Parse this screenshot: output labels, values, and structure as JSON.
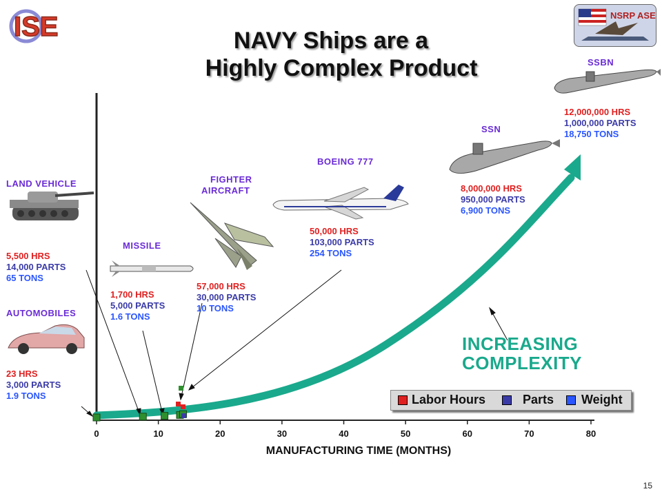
{
  "slide": {
    "title_line1": "NAVY Ships are a",
    "title_line2": "Highly Complex Product",
    "logo_left_text": "ISE",
    "logo_right_text": "NSRP ASE",
    "page_number": "15",
    "increasing_line1": "INCREASING",
    "increasing_line2": "COMPLEXITY"
  },
  "items": [
    {
      "name": "AUTOMOBILES",
      "hrs": "23 HRS",
      "parts": "3,000 PARTS",
      "tons": "1.9 TONS"
    },
    {
      "name": "LAND VEHICLE",
      "hrs": "5,500 HRS",
      "parts": "14,000 PARTS",
      "tons": "65 TONS"
    },
    {
      "name": "MISSILE",
      "hrs": "1,700 HRS",
      "parts": "5,000 PARTS",
      "tons": "1.6 TONS"
    },
    {
      "name_line1": "FIGHTER",
      "name_line2": "AIRCRAFT",
      "hrs": "57,000 HRS",
      "parts": "30,000 PARTS",
      "tons": "10 TONS"
    },
    {
      "name": "BOEING 777",
      "hrs": "50,000 HRS",
      "parts": "103,000 PARTS",
      "tons": "254 TONS"
    },
    {
      "name": "SSN",
      "hrs": "8,000,000 HRS",
      "parts": "950,000 PARTS",
      "tons": "6,900 TONS"
    },
    {
      "name": "SSBN",
      "hrs": "12,000,000 HRS",
      "parts": "1,000,000 PARTS",
      "tons": "18,750 TONS"
    }
  ],
  "colors": {
    "labor_hours": "#e02020",
    "parts": "#3b3ba8",
    "weight": "#2a55ff",
    "category": "#6a2bd6",
    "curve": "#1aa98c",
    "marker": "#2f8f2f"
  },
  "chart_data": {
    "type": "scatter",
    "xlabel": "MANUFACTURING TIME (MONTHS)",
    "xlim": [
      0,
      80
    ],
    "xticks": [
      0,
      10,
      20,
      30,
      40,
      50,
      60,
      70,
      80
    ],
    "legend": [
      "Labor Hours",
      "Parts",
      "Weight"
    ],
    "legend_position": "bottom-right",
    "grid": false,
    "points_x": [
      0,
      7.5,
      11,
      13.5,
      14
    ],
    "trend": "increasing exponential-like curve with arrowhead"
  }
}
